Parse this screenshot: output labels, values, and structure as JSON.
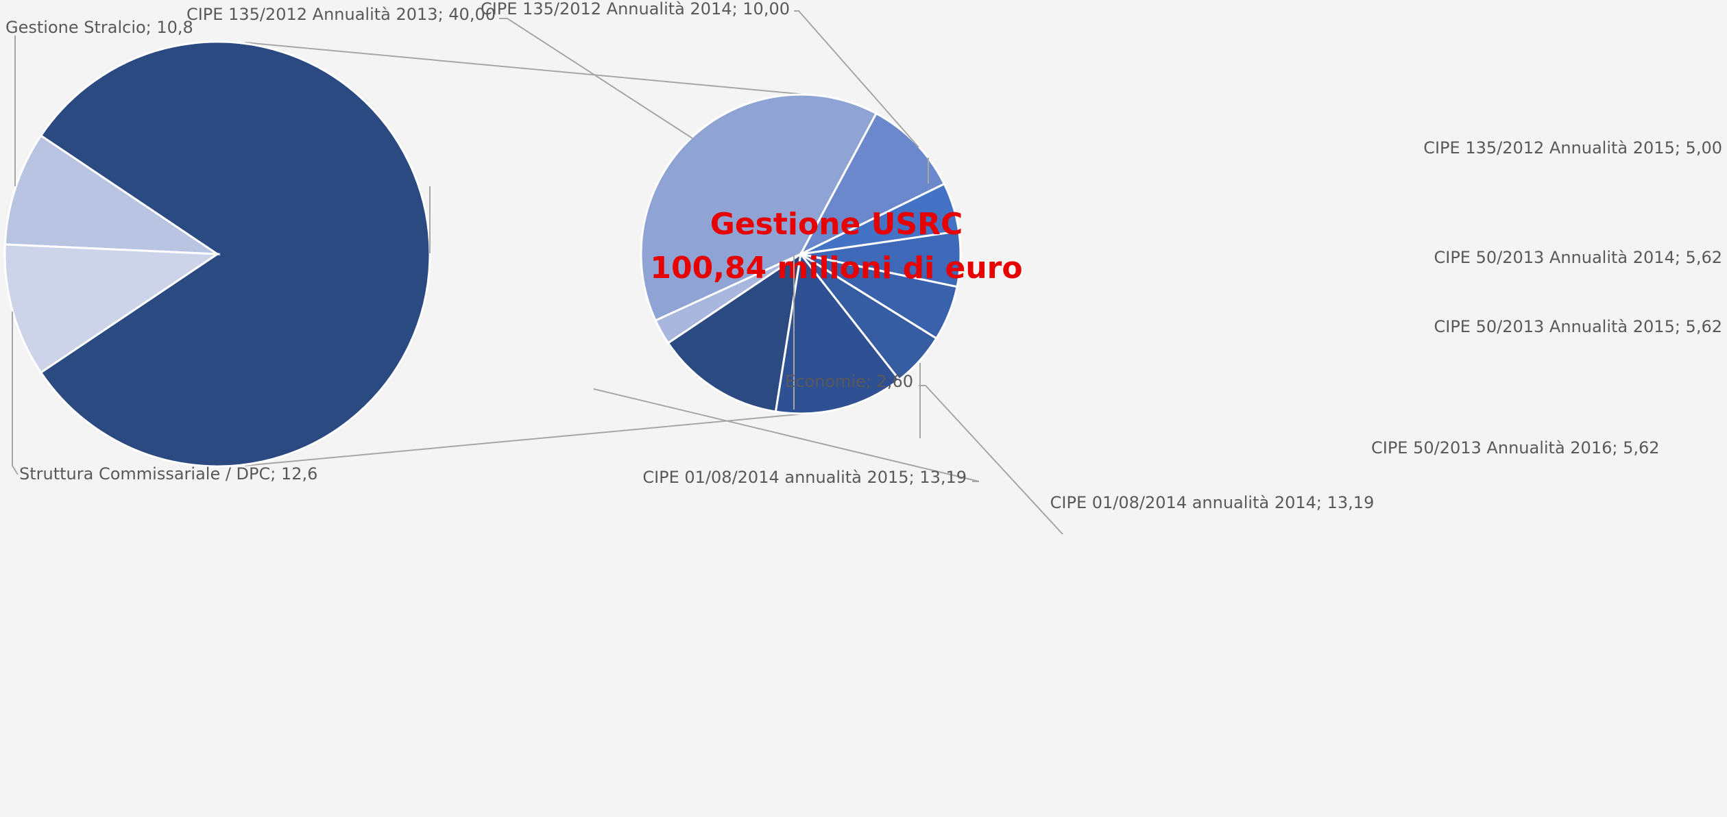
{
  "chart_data": {
    "type": "pie-of-pie",
    "main": [
      {
        "name": "Gestione USRC",
        "value": 100.84,
        "value_label": "100,84 milioni di euro",
        "color": "#2b4a82"
      },
      {
        "label": "Gestione Stralcio; 10,8",
        "value": 10.8,
        "color": "#b9c3e2"
      },
      {
        "label": "Struttura Commissariale / DPC; 12,6",
        "value": 12.6,
        "color": "#cdd4ea"
      }
    ],
    "secondary": [
      {
        "label": "CIPE 135/2012 Annualità 2013; 40,00",
        "value": 40.0,
        "color": "#8fa3d4"
      },
      {
        "label": "Economie; 2,60",
        "value": 2.6,
        "color": "#a9b7de"
      },
      {
        "label": "CIPE 01/08/2014 annualità 2015; 13,19",
        "value": 13.19,
        "color": "#2b4a82"
      },
      {
        "label": "CIPE 01/08/2014 annualità 2014; 13,19",
        "value": 13.19,
        "color": "#2f5193"
      },
      {
        "label": "CIPE 50/2013 Annualità 2016; 5,62",
        "value": 5.62,
        "color": "#365ca2"
      },
      {
        "label": "CIPE 50/2013 Annualità 2015; 5,62",
        "value": 5.62,
        "color": "#3a61ac"
      },
      {
        "label": "CIPE 50/2013 Annualità 2014; 5,62",
        "value": 5.62,
        "color": "#3e68b8"
      },
      {
        "label": "CIPE 135/2012 Annualità 2015; 5,00",
        "value": 5.0,
        "color": "#4472c4"
      },
      {
        "label": "CIPE 135/2012 Annualità 2014; 10,00",
        "value": 10.0,
        "color": "#6b88cc"
      }
    ]
  }
}
